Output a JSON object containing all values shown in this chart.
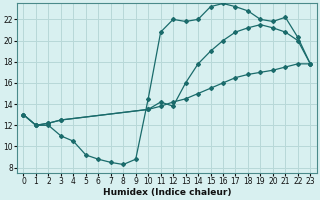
{
  "xlabel": "Humidex (Indice chaleur)",
  "bg_color": "#d8f0f0",
  "grid_color": "#b8d8d8",
  "line_color": "#1a6b6b",
  "xlim": [
    -0.5,
    23.5
  ],
  "ylim": [
    7.5,
    23.5
  ],
  "xticks": [
    0,
    1,
    2,
    3,
    4,
    5,
    6,
    7,
    8,
    9,
    10,
    11,
    12,
    13,
    14,
    15,
    16,
    17,
    18,
    19,
    20,
    21,
    22,
    23
  ],
  "yticks": [
    8,
    10,
    12,
    14,
    16,
    18,
    20,
    22
  ],
  "line1_x": [
    0,
    1,
    2,
    3,
    4,
    5,
    6,
    7,
    8,
    9,
    10,
    11,
    12,
    13,
    14,
    15,
    16,
    17,
    18,
    19,
    20,
    21,
    22,
    23
  ],
  "line1_y": [
    13,
    12,
    12,
    11,
    10.5,
    9.2,
    8.8,
    8.5,
    8.3,
    8.8,
    14.5,
    20.8,
    22.0,
    21.8,
    22.0,
    23.2,
    23.5,
    23.2,
    22.8,
    22.0,
    21.8,
    22.2,
    20.3,
    17.8
  ],
  "line2_x": [
    0,
    1,
    2,
    3,
    10,
    11,
    12,
    13,
    14,
    15,
    16,
    17,
    18,
    19,
    20,
    21,
    22,
    23
  ],
  "line2_y": [
    13,
    12,
    12.2,
    12.5,
    13.5,
    14.2,
    13.8,
    16.0,
    17.8,
    19.0,
    20.0,
    20.8,
    21.2,
    21.5,
    21.2,
    20.8,
    20.0,
    17.8
  ],
  "line3_x": [
    0,
    1,
    2,
    3,
    10,
    11,
    12,
    13,
    14,
    15,
    16,
    17,
    18,
    19,
    20,
    21,
    22,
    23
  ],
  "line3_y": [
    13,
    12,
    12.2,
    12.5,
    13.5,
    13.8,
    14.2,
    14.5,
    15.0,
    15.5,
    16.0,
    16.5,
    16.8,
    17.0,
    17.2,
    17.5,
    17.8,
    17.8
  ]
}
